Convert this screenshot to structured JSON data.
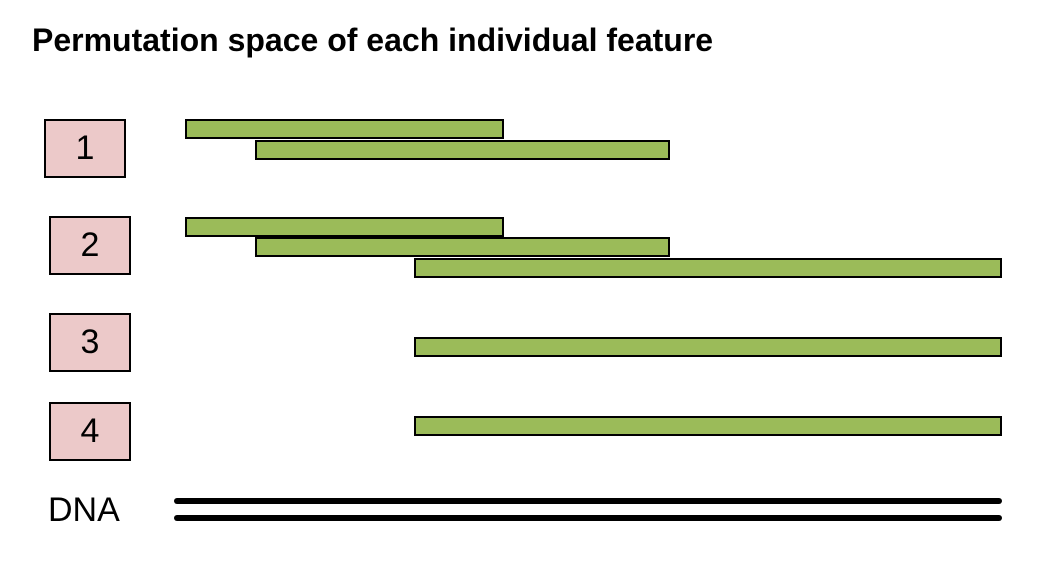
{
  "title": "Permutation space of each individual feature",
  "colors": {
    "box_fill": "#ecc9c9",
    "bar_fill": "#9bbb59",
    "outline": "#000000"
  },
  "features": [
    {
      "label": "1",
      "bars": [
        [
          0.0,
          0.39
        ],
        [
          0.086,
          0.594
        ]
      ]
    },
    {
      "label": "2",
      "bars": [
        [
          0.0,
          0.39
        ],
        [
          0.086,
          0.594
        ],
        [
          0.28,
          1.0
        ]
      ]
    },
    {
      "label": "3",
      "bars": [
        [
          0.28,
          1.0
        ]
      ]
    },
    {
      "label": "4",
      "bars": [
        [
          0.28,
          1.0
        ]
      ]
    }
  ],
  "dna": {
    "label": "DNA"
  }
}
